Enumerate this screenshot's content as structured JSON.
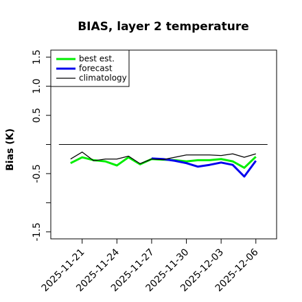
{
  "chart_data": {
    "type": "line",
    "title": "BIAS, layer 2 temperature",
    "y_label": "Bias (K)",
    "x": [
      "2025-11-20",
      "2025-11-21",
      "2025-11-22",
      "2025-11-23",
      "2025-11-24",
      "2025-11-25",
      "2025-11-26",
      "2025-11-27",
      "2025-11-28",
      "2025-11-29",
      "2025-11-30",
      "2025-12-01",
      "2025-12-02",
      "2025-12-03",
      "2025-12-04",
      "2025-12-05",
      "2025-12-06"
    ],
    "series": [
      {
        "name": "best est.",
        "color": "#00ee00",
        "width": 3,
        "values": [
          -0.32,
          -0.22,
          -0.27,
          -0.29,
          -0.36,
          -0.22,
          -0.34,
          -0.25,
          -0.26,
          -0.27,
          -0.29,
          -0.27,
          -0.27,
          -0.25,
          -0.29,
          -0.4,
          -0.21
        ]
      },
      {
        "name": "forecast",
        "color": "#0000ee",
        "width": 3,
        "values": [
          null,
          null,
          null,
          null,
          null,
          null,
          null,
          -0.24,
          -0.25,
          -0.28,
          -0.32,
          -0.38,
          -0.35,
          -0.31,
          -0.35,
          -0.55,
          -0.28
        ]
      },
      {
        "name": "climatology",
        "color": "#000000",
        "width": 1.3,
        "values": [
          -0.25,
          -0.13,
          -0.28,
          -0.25,
          -0.25,
          -0.2,
          -0.33,
          -0.25,
          -0.26,
          -0.22,
          -0.18,
          -0.18,
          -0.18,
          -0.19,
          -0.16,
          -0.22,
          -0.16
        ]
      }
    ],
    "reference_line": 0,
    "xlim": [
      "2025-11-18T07:00Z",
      "2025-12-07T19:00Z"
    ],
    "xticks": [
      "2025-11-21",
      "2025-11-24",
      "2025-11-27",
      "2025-11-30",
      "2025-12-03",
      "2025-12-06"
    ],
    "xtick_colors": [
      "#000000",
      "#000000",
      "#228b22",
      "#000000",
      "#000000",
      "#000000"
    ],
    "ylim": [
      -1.62,
      1.62
    ],
    "yticks": [
      {
        "value": -1.5,
        "label": "-1.5"
      },
      {
        "value": -1,
        "label": null
      },
      {
        "value": -0.5,
        "label": "-0.5"
      },
      {
        "value": 0,
        "label": null
      },
      {
        "value": 0.5,
        "label": "0.5"
      },
      {
        "value": 1,
        "label": "1.0"
      },
      {
        "value": 1.5,
        "label": "1.5"
      }
    ],
    "legend": "top-left"
  }
}
